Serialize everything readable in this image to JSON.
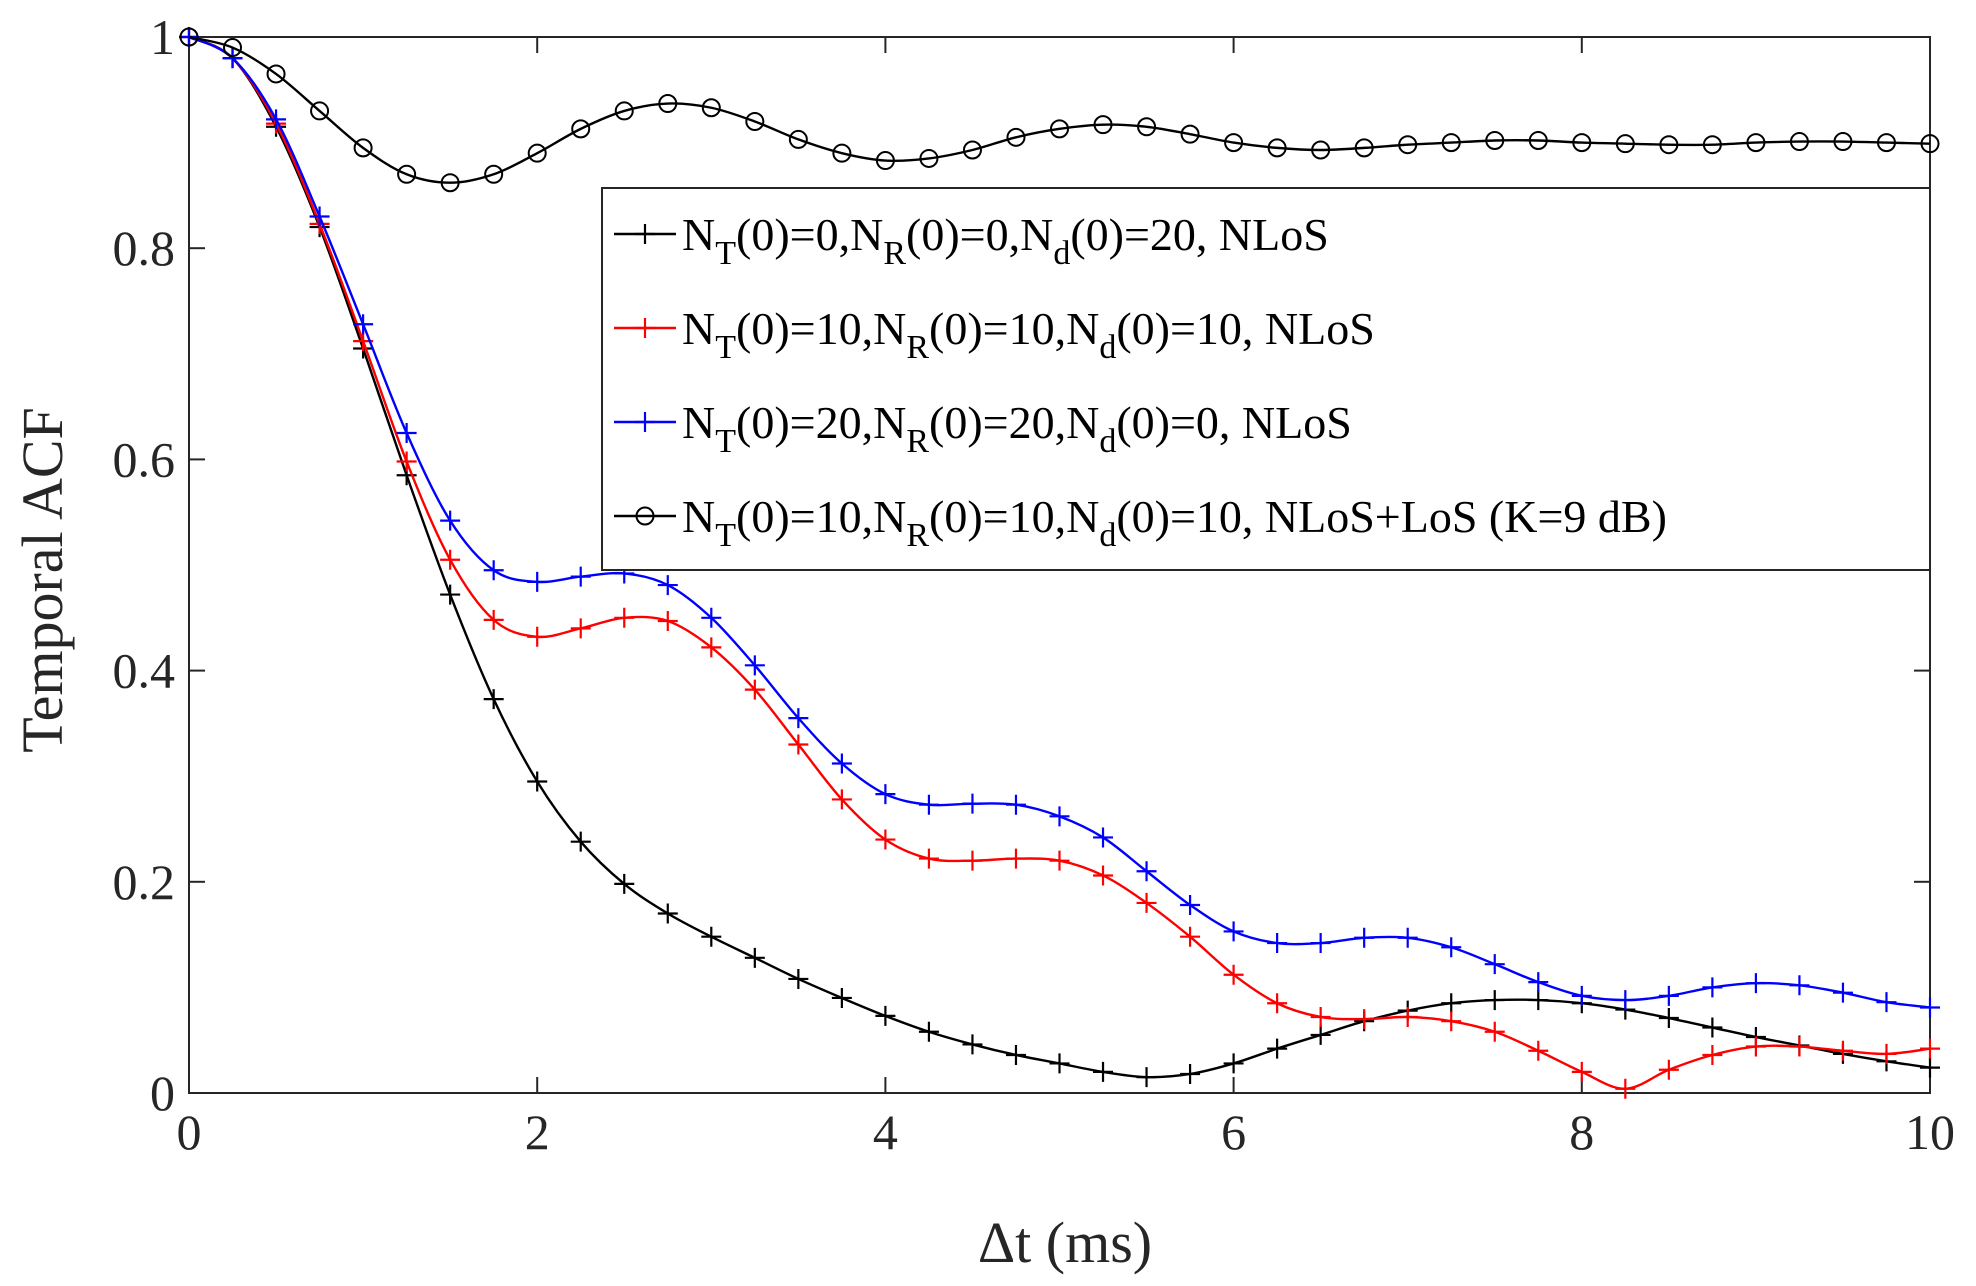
{
  "chart_data": {
    "type": "line",
    "xlabel": "Δt (ms)",
    "ylabel": "Temporal ACF",
    "xlim": [
      0,
      10
    ],
    "ylim": [
      0,
      1
    ],
    "xticks": [
      0,
      2,
      4,
      6,
      8,
      10
    ],
    "yticks": [
      0,
      0.2,
      0.4,
      0.6,
      0.8,
      1
    ],
    "xtick_labels": [
      "0",
      "2",
      "4",
      "6",
      "8",
      "10"
    ],
    "ytick_labels": [
      "0",
      "0.2",
      "0.4",
      "0.6",
      "0.8",
      "1"
    ],
    "grid": false,
    "box": true,
    "legend_position": "top-right",
    "x": [
      0,
      0.25,
      0.5,
      0.75,
      1,
      1.25,
      1.5,
      1.75,
      2,
      2.25,
      2.5,
      2.75,
      3,
      3.25,
      3.5,
      3.75,
      4,
      4.25,
      4.5,
      4.75,
      5,
      5.25,
      5.5,
      5.75,
      6,
      6.25,
      6.5,
      6.75,
      7,
      7.25,
      7.5,
      7.75,
      8,
      8.25,
      8.5,
      8.75,
      9,
      9.25,
      9.5,
      9.75,
      10
    ],
    "series": [
      {
        "legend": [
          {
            "t": "N"
          },
          {
            "t": "T",
            "sub": true
          },
          {
            "t": "(0)=0,N"
          },
          {
            "t": "R",
            "sub": true
          },
          {
            "t": "(0)=0,N"
          },
          {
            "t": "d",
            "sub": true
          },
          {
            "t": "(0)=20, NLoS"
          }
        ],
        "color": "#000000",
        "marker": "plus",
        "values": [
          1.0,
          0.98,
          0.915,
          0.82,
          0.705,
          0.585,
          0.472,
          0.373,
          0.295,
          0.238,
          0.198,
          0.17,
          0.148,
          0.128,
          0.108,
          0.09,
          0.073,
          0.058,
          0.046,
          0.036,
          0.028,
          0.02,
          0.015,
          0.018,
          0.028,
          0.042,
          0.055,
          0.068,
          0.078,
          0.085,
          0.088,
          0.088,
          0.085,
          0.079,
          0.071,
          0.062,
          0.053,
          0.045,
          0.037,
          0.03,
          0.024
        ]
      },
      {
        "legend": [
          {
            "t": "N"
          },
          {
            "t": "T",
            "sub": true
          },
          {
            "t": "(0)=10,N"
          },
          {
            "t": "R",
            "sub": true
          },
          {
            "t": "(0)=10,N"
          },
          {
            "t": "d",
            "sub": true
          },
          {
            "t": "(0)=10, NLoS"
          }
        ],
        "color": "#ff0000",
        "marker": "plus",
        "values": [
          1.0,
          0.98,
          0.918,
          0.823,
          0.712,
          0.598,
          0.505,
          0.448,
          0.432,
          0.44,
          0.45,
          0.447,
          0.422,
          0.382,
          0.33,
          0.278,
          0.24,
          0.222,
          0.22,
          0.222,
          0.22,
          0.206,
          0.18,
          0.148,
          0.112,
          0.085,
          0.072,
          0.07,
          0.072,
          0.068,
          0.058,
          0.04,
          0.02,
          0.004,
          0.022,
          0.036,
          0.044,
          0.044,
          0.04,
          0.037,
          0.042
        ]
      },
      {
        "legend": [
          {
            "t": "N"
          },
          {
            "t": "T",
            "sub": true
          },
          {
            "t": "(0)=20,N"
          },
          {
            "t": "R",
            "sub": true
          },
          {
            "t": "(0)=20,N"
          },
          {
            "t": "d",
            "sub": true
          },
          {
            "t": "(0)=0, NLoS"
          }
        ],
        "color": "#0000ff",
        "marker": "plus",
        "values": [
          1.0,
          0.98,
          0.922,
          0.83,
          0.728,
          0.625,
          0.542,
          0.495,
          0.484,
          0.489,
          0.492,
          0.481,
          0.45,
          0.405,
          0.355,
          0.312,
          0.283,
          0.273,
          0.274,
          0.273,
          0.262,
          0.242,
          0.21,
          0.178,
          0.153,
          0.142,
          0.142,
          0.147,
          0.147,
          0.138,
          0.122,
          0.105,
          0.092,
          0.088,
          0.092,
          0.1,
          0.104,
          0.102,
          0.095,
          0.086,
          0.081
        ]
      },
      {
        "legend": [
          {
            "t": "N"
          },
          {
            "t": "T",
            "sub": true
          },
          {
            "t": "(0)=10,N"
          },
          {
            "t": "R",
            "sub": true
          },
          {
            "t": "(0)=10,N"
          },
          {
            "t": "d",
            "sub": true
          },
          {
            "t": "(0)=10, NLoS+LoS (K=9 dB)"
          }
        ],
        "color": "#000000",
        "marker": "circle",
        "values": [
          1.0,
          0.99,
          0.965,
          0.93,
          0.895,
          0.87,
          0.862,
          0.87,
          0.89,
          0.913,
          0.93,
          0.937,
          0.933,
          0.92,
          0.903,
          0.89,
          0.883,
          0.885,
          0.893,
          0.905,
          0.913,
          0.917,
          0.915,
          0.908,
          0.9,
          0.895,
          0.893,
          0.895,
          0.898,
          0.9,
          0.902,
          0.902,
          0.9,
          0.899,
          0.898,
          0.898,
          0.9,
          0.901,
          0.901,
          0.9,
          0.899
        ]
      }
    ]
  }
}
